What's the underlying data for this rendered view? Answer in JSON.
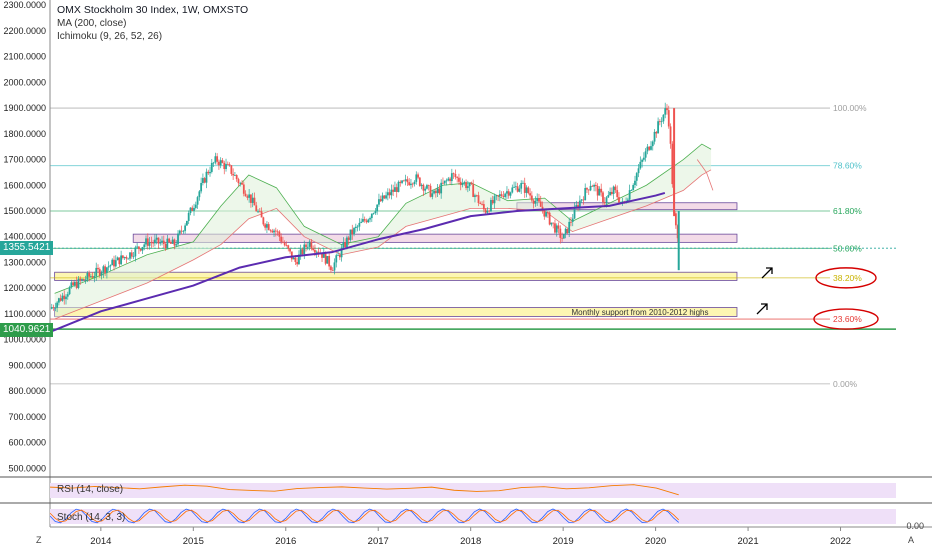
{
  "header": {
    "title": "OMX Stockholm 30 Index, 1W, OMXSTO",
    "ma": "MA (200, close)",
    "ichimoku": "Ichimoku (9, 26, 52, 26)"
  },
  "price_tags": {
    "current": "1355.5421",
    "support": "1040.9621"
  },
  "fib_levels": [
    "100.00%",
    "78.60%",
    "61.80%",
    "50.00%",
    "38.20%",
    "23.60%",
    "0.00%"
  ],
  "annotation": "Monthly support from 2010-2012 highs",
  "indicators": {
    "rsi": "RSI (14, close)",
    "stoch": "Stoch (14, 3, 3)",
    "stoch_value": "0.00"
  },
  "corner": {
    "left": "Z",
    "right": "A"
  },
  "colors": {
    "up": "#26a69a",
    "down": "#ef5350",
    "ma": "#5b2bb0",
    "fib_green": "#26a65b",
    "fib_teal": "#4ec1c9",
    "fib_red": "#e53935",
    "zone_yellow": "#fdf6b2",
    "zone_pink": "#f3dbe8",
    "rsi": "#f57c00"
  },
  "chart_data": {
    "type": "candlestick",
    "title": "OMX Stockholm 30 Index, 1W, OMXSTO",
    "ylim": [
      470,
      2320
    ],
    "y_ticks": [
      "2300.0000",
      "2200.0000",
      "2100.0000",
      "2000.0000",
      "1900.0000",
      "1800.0000",
      "1700.0000",
      "1600.0000",
      "1500.0000",
      "1400.0000",
      "1300.0000",
      "1200.0000",
      "1100.0000",
      "1000.0000",
      "900.0000",
      "800.0000",
      "700.0000",
      "600.0000",
      "500.0000"
    ],
    "x_ticks": [
      "2014",
      "2015",
      "2016",
      "2017",
      "2018",
      "2019",
      "2020",
      "2021",
      "2022"
    ],
    "x_range": [
      2013.45,
      2022.6
    ],
    "price_path": [
      [
        2013.45,
        1120
      ],
      [
        2013.7,
        1210
      ],
      [
        2014.0,
        1270
      ],
      [
        2014.3,
        1330
      ],
      [
        2014.5,
        1380
      ],
      [
        2014.8,
        1370
      ],
      [
        2015.0,
        1520
      ],
      [
        2015.15,
        1650
      ],
      [
        2015.25,
        1700
      ],
      [
        2015.4,
        1660
      ],
      [
        2015.6,
        1560
      ],
      [
        2015.75,
        1460
      ],
      [
        2015.9,
        1420
      ],
      [
        2016.1,
        1300
      ],
      [
        2016.25,
        1380
      ],
      [
        2016.4,
        1330
      ],
      [
        2016.5,
        1280
      ],
      [
        2016.7,
        1410
      ],
      [
        2016.9,
        1480
      ],
      [
        2017.0,
        1530
      ],
      [
        2017.2,
        1590
      ],
      [
        2017.4,
        1630
      ],
      [
        2017.6,
        1560
      ],
      [
        2017.8,
        1640
      ],
      [
        2018.0,
        1590
      ],
      [
        2018.15,
        1500
      ],
      [
        2018.35,
        1570
      ],
      [
        2018.55,
        1600
      ],
      [
        2018.75,
        1520
      ],
      [
        2018.9,
        1440
      ],
      [
        2019.0,
        1390
      ],
      [
        2019.15,
        1520
      ],
      [
        2019.3,
        1610
      ],
      [
        2019.45,
        1540
      ],
      [
        2019.55,
        1580
      ],
      [
        2019.65,
        1520
      ],
      [
        2019.8,
        1650
      ],
      [
        2019.95,
        1770
      ],
      [
        2020.05,
        1850
      ],
      [
        2020.12,
        1900
      ],
      [
        2020.15,
        1830
      ],
      [
        2020.2,
        1480
      ],
      [
        2020.25,
        1355.5421
      ]
    ],
    "ma200": [
      [
        2013.45,
        1030
      ],
      [
        2014.0,
        1110
      ],
      [
        2014.5,
        1160
      ],
      [
        2015.0,
        1210
      ],
      [
        2015.5,
        1280
      ],
      [
        2016.0,
        1320
      ],
      [
        2016.5,
        1340
      ],
      [
        2017.0,
        1390
      ],
      [
        2017.5,
        1430
      ],
      [
        2018.0,
        1480
      ],
      [
        2018.5,
        1500
      ],
      [
        2019.0,
        1510
      ],
      [
        2019.5,
        1520
      ],
      [
        2020.0,
        1560
      ],
      [
        2020.1,
        1570
      ]
    ],
    "cloud_a": [
      [
        2013.5,
        1180
      ],
      [
        2014.0,
        1250
      ],
      [
        2014.5,
        1330
      ],
      [
        2015.0,
        1380
      ],
      [
        2015.3,
        1520
      ],
      [
        2015.6,
        1640
      ],
      [
        2015.9,
        1590
      ],
      [
        2016.2,
        1440
      ],
      [
        2016.6,
        1370
      ],
      [
        2017.0,
        1400
      ],
      [
        2017.3,
        1530
      ],
      [
        2017.7,
        1600
      ],
      [
        2018.0,
        1610
      ],
      [
        2018.4,
        1540
      ],
      [
        2018.8,
        1550
      ],
      [
        2019.1,
        1460
      ],
      [
        2019.5,
        1530
      ],
      [
        2019.9,
        1600
      ],
      [
        2020.3,
        1700
      ],
      [
        2020.5,
        1760
      ],
      [
        2020.6,
        1740
      ]
    ],
    "cloud_b": [
      [
        2013.5,
        1080
      ],
      [
        2014.0,
        1150
      ],
      [
        2014.5,
        1220
      ],
      [
        2015.0,
        1310
      ],
      [
        2015.3,
        1370
      ],
      [
        2015.6,
        1470
      ],
      [
        2015.9,
        1510
      ],
      [
        2016.2,
        1400
      ],
      [
        2016.6,
        1330
      ],
      [
        2017.0,
        1360
      ],
      [
        2017.3,
        1440
      ],
      [
        2017.7,
        1480
      ],
      [
        2018.0,
        1510
      ],
      [
        2018.4,
        1510
      ],
      [
        2018.8,
        1500
      ],
      [
        2019.1,
        1420
      ],
      [
        2019.5,
        1470
      ],
      [
        2019.9,
        1520
      ],
      [
        2020.3,
        1580
      ],
      [
        2020.5,
        1640
      ],
      [
        2020.6,
        1660
      ]
    ],
    "lagging": [
      [
        2020.45,
        1700
      ],
      [
        2020.55,
        1650
      ],
      [
        2020.62,
        1580
      ]
    ],
    "fib": [
      {
        "label": "100.00%",
        "value": 1900,
        "color": "#9e9e9e"
      },
      {
        "label": "78.60%",
        "value": 1676,
        "color": "#4ec1c9"
      },
      {
        "label": "61.80%",
        "value": 1500,
        "color": "#26a65b"
      },
      {
        "label": "50.00%",
        "value": 1355,
        "color": "#26a65b"
      },
      {
        "label": "38.20%",
        "value": 1240,
        "color": "#c9b300"
      },
      {
        "label": "23.60%",
        "value": 1080,
        "color": "#e53935"
      },
      {
        "label": "0.00%",
        "value": 828,
        "color": "#9e9e9e"
      }
    ],
    "zones": [
      {
        "from": 1230,
        "to": 1262,
        "color": "#fdf6b2",
        "x0": 2013.5,
        "x1": 2020.88
      },
      {
        "from": 1090,
        "to": 1125,
        "color": "#fdf6b2",
        "x0": 2013.5,
        "x1": 2020.88
      },
      {
        "from": 1378,
        "to": 1410,
        "color": "#f3dbe8",
        "x0": 2014.35,
        "x1": 2020.88
      },
      {
        "from": 1505,
        "to": 1532,
        "color": "#f3dbe8",
        "x0": 2018.5,
        "x1": 2020.88
      }
    ],
    "support_line": 1040.9621,
    "rsi": [
      62,
      58,
      65,
      60,
      55,
      63,
      70,
      66,
      52,
      48,
      45,
      56,
      60,
      63,
      58,
      54,
      57,
      62,
      49,
      44,
      47,
      60,
      64,
      55,
      59,
      68,
      72,
      58,
      30
    ]
  }
}
